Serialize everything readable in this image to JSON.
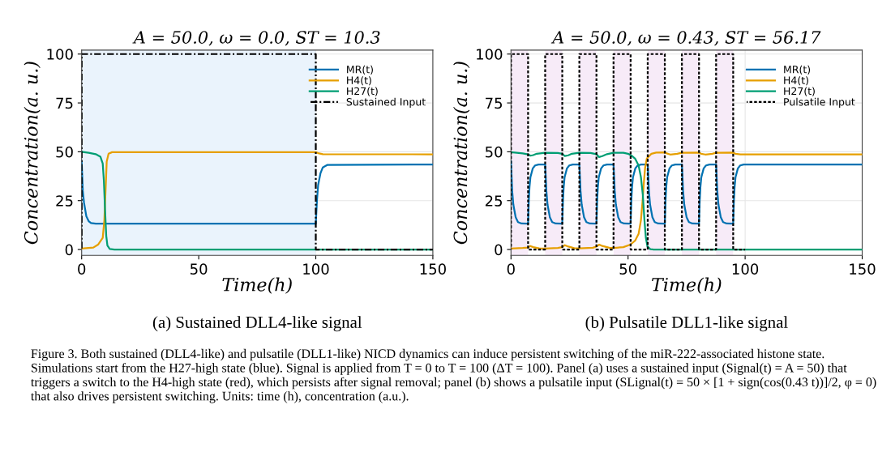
{
  "chart_data": [
    {
      "type": "line",
      "title": "A = 50.0, ω = 0.0, ST = 10.3",
      "xlabel": "Time(h)",
      "ylabel": "Concentration(a. u.)",
      "xlim": [
        0,
        150
      ],
      "xticks": [
        0,
        50,
        100,
        150
      ],
      "ylim": [
        -3,
        102
      ],
      "yticks": [
        0,
        25,
        50,
        75,
        100
      ],
      "grid": true,
      "legend": "top right",
      "bands": [
        {
          "axis": "x",
          "from": 0,
          "to": 100,
          "color": "#eaf3fc"
        }
      ],
      "annotations": [
        "(a) Sustained DLL4-like signal",
        "Figure 3. Both sustained (DLL4-like) and pulsatile (DLL1-like) NICD dynamics can induce persistent switching of the miR-222-associated histone state. Simulations start from the H27-high state (blue). Signal is applied from T = 0 to T = 100 (ΔT = 100). Panel (a) uses a sustained input (Signal(t) = A = 50) that triggers a switch to the H4-high state (red), which persists after signal removal; panel (b) shows a pulsatile input (SLignal(t) = 50 × [1 + sign(cos(0.43 t))]/2, φ = 0) that also drives persistent switching. Units: time (h), concentration (a.u.)."
      ],
      "series": [
        {
          "name": "Sustained Input",
          "type": "line",
          "color": "#000000",
          "line_style": "dashdot",
          "x": [
            0,
            0,
            100,
            100,
            150
          ],
          "values": [
            0,
            100,
            100,
            0,
            0
          ]
        },
        {
          "name": "MR(t)",
          "color": "#0072b2",
          "x": [
            0,
            0.5,
            1,
            2,
            3,
            4,
            6,
            100,
            100.5,
            101,
            102,
            103,
            105,
            150
          ],
          "values": [
            45,
            30,
            24,
            17,
            14.5,
            13.5,
            13.2,
            13.2,
            25,
            33,
            39,
            42,
            43.3,
            43.5
          ]
        },
        {
          "name": "H4(t)",
          "color": "#e69f00",
          "x": [
            0,
            5,
            7,
            9,
            9.7,
            10.2,
            10.7,
            11.5,
            13,
            100,
            101,
            103,
            150
          ],
          "values": [
            0.5,
            1,
            2.5,
            6,
            15,
            30,
            45,
            49,
            49.8,
            49.8,
            49.3,
            48.8,
            48.7
          ]
        },
        {
          "name": "H27(t)",
          "color": "#009e73",
          "x": [
            0,
            3,
            6,
            8,
            9,
            9.5,
            10,
            10.5,
            11,
            12,
            14,
            150
          ],
          "values": [
            50,
            49.5,
            48.8,
            47.5,
            44,
            35,
            20,
            7,
            2,
            0.3,
            0,
            0
          ]
        }
      ]
    },
    {
      "type": "line",
      "title": "A = 50.0, ω = 0.43, ST = 56.17",
      "xlabel": "Time(h)",
      "ylabel": "Concentration(a. u.)",
      "xlim": [
        0,
        150
      ],
      "xticks": [
        0,
        50,
        100,
        150
      ],
      "ylim": [
        -3,
        102
      ],
      "yticks": [
        0,
        25,
        50,
        75,
        100
      ],
      "grid": true,
      "legend": "top right",
      "bands": [
        {
          "axis": "x",
          "from": 0,
          "to": 7.3,
          "color": "#f7ebf8"
        },
        {
          "axis": "x",
          "from": 14.6,
          "to": 21.9,
          "color": "#f7ebf8"
        },
        {
          "axis": "x",
          "from": 29.2,
          "to": 36.5,
          "color": "#f7ebf8"
        },
        {
          "axis": "x",
          "from": 43.8,
          "to": 51.1,
          "color": "#f7ebf8"
        },
        {
          "axis": "x",
          "from": 58.4,
          "to": 65.7,
          "color": "#f7ebf8"
        },
        {
          "axis": "x",
          "from": 73.0,
          "to": 80.3,
          "color": "#f7ebf8"
        },
        {
          "axis": "x",
          "from": 87.6,
          "to": 94.9,
          "color": "#f7ebf8"
        }
      ],
      "annotations": [
        "(b) Pulsatile DLL1-like signal"
      ],
      "series": [
        {
          "name": "Pulsatile Input",
          "type": "line",
          "color": "#000000",
          "line_style": "dotted",
          "x": [
            0,
            0,
            7.3,
            7.3,
            14.6,
            14.6,
            21.9,
            21.9,
            29.2,
            29.2,
            36.5,
            36.5,
            43.8,
            43.8,
            51.1,
            51.1,
            58.4,
            58.4,
            65.7,
            65.7,
            73.0,
            73.0,
            80.3,
            80.3,
            87.6,
            87.6,
            94.9,
            94.9,
            100
          ],
          "values": [
            0,
            100,
            100,
            0,
            0,
            100,
            100,
            0,
            0,
            100,
            100,
            0,
            0,
            100,
            100,
            0,
            0,
            100,
            100,
            0,
            0,
            100,
            100,
            0,
            0,
            100,
            100,
            0,
            0
          ]
        },
        {
          "name": "MR(t)",
          "color": "#0072b2",
          "x": [
            0,
            0.5,
            1,
            2,
            3,
            4.5,
            7.3,
            7.6,
            7.9,
            8.3,
            9.3,
            10.3,
            11.8,
            14.6,
            15.1,
            15.6,
            16.6,
            17.6,
            19.1,
            21.9,
            22.2,
            22.5,
            22.9,
            23.9,
            24.9,
            26.4,
            29.2,
            29.7,
            30.2,
            31.2,
            32.2,
            33.7,
            36.5,
            36.8,
            37.1,
            37.5,
            38.5,
            39.5,
            41.0,
            43.8,
            44.3,
            44.8,
            45.8,
            46.8,
            48.3,
            51.1,
            51.4,
            51.7,
            52.1,
            53.1,
            54.1,
            55.6,
            58.4,
            58.9,
            59.4,
            60.4,
            61.4,
            62.9,
            65.7,
            66.0,
            66.3,
            66.7,
            67.7,
            68.7,
            70.2,
            73.0,
            73.5,
            74.0,
            75.0,
            76.0,
            77.5,
            80.3,
            80.6,
            80.9,
            81.3,
            82.3,
            83.3,
            84.8,
            87.6,
            88.1,
            88.6,
            89.6,
            90.6,
            92.1,
            94.9,
            95.2,
            95.5,
            95.9,
            96.9,
            97.9,
            99.4,
            150
          ],
          "values": [
            45,
            30,
            23,
            16.5,
            14,
            13.3,
            13.2,
            25,
            32,
            37,
            41.5,
            43,
            43.5,
            43.5,
            30,
            23,
            16.5,
            14,
            13.3,
            13.2,
            25,
            32,
            37,
            41.5,
            43,
            43.5,
            43.5,
            30,
            23,
            16.5,
            14,
            13.3,
            13.2,
            25,
            32,
            37,
            41.5,
            43,
            43.5,
            43.5,
            30,
            23,
            16.5,
            14,
            13.3,
            13.2,
            25,
            32,
            37,
            41.5,
            43,
            43.5,
            43.5,
            30,
            23,
            16.5,
            14,
            13.3,
            13.2,
            25,
            32,
            37,
            41.5,
            43,
            43.5,
            43.5,
            30,
            23,
            16.5,
            14,
            13.3,
            13.2,
            25,
            32,
            37,
            41.5,
            43,
            43.5,
            43.5,
            30,
            23,
            16.5,
            14,
            13.3,
            13.2,
            25,
            32,
            37,
            41.5,
            43,
            43.5,
            43.5
          ]
        },
        {
          "name": "H4(t)",
          "color": "#e69f00",
          "x": [
            0,
            5,
            7.3,
            8.2,
            9.5,
            12,
            14.6,
            20,
            21.9,
            23,
            24.5,
            27,
            29.2,
            35,
            36.5,
            37.7,
            39,
            42,
            43.8,
            48,
            51,
            53,
            54.5,
            55.5,
            56.2,
            56.8,
            57.3,
            58,
            60,
            62,
            65.7,
            66.5,
            68,
            71,
            73,
            80.3,
            81.2,
            83,
            86,
            87.6,
            94.9,
            95.8,
            98,
            150
          ],
          "values": [
            0.5,
            0.8,
            1,
            1.8,
            1.2,
            0.6,
            0.5,
            0.8,
            1.2,
            2.2,
            1.5,
            0.7,
            0.6,
            0.9,
            1.5,
            2.5,
            1.8,
            0.9,
            0.8,
            1.2,
            2.5,
            4.5,
            8,
            15,
            25,
            35,
            42,
            46.5,
            49,
            49.6,
            49.7,
            49.2,
            48.6,
            49,
            49.5,
            49.6,
            49,
            48.6,
            49,
            49.5,
            49.6,
            49,
            48.7,
            48.7
          ]
        },
        {
          "name": "H27(t)",
          "color": "#009e73",
          "x": [
            0,
            5,
            7.3,
            8.3,
            9.5,
            11,
            14.6,
            20,
            21.9,
            23,
            24.5,
            26,
            29.2,
            34,
            36.5,
            37.6,
            39,
            41,
            43.8,
            48,
            50,
            51.5,
            53,
            54.5,
            55.5,
            56.3,
            57,
            57.6,
            58.3,
            59.5,
            61,
            150
          ],
          "values": [
            49.8,
            49.2,
            48.7,
            48.0,
            48.3,
            49,
            49.5,
            49.4,
            49.0,
            47.8,
            48.2,
            49,
            49.5,
            49.4,
            48.8,
            47.3,
            47.8,
            48.8,
            49.5,
            49.5,
            49,
            48,
            46.5,
            43,
            37,
            28,
            15,
            6,
            1.5,
            0.2,
            0,
            0
          ]
        }
      ]
    }
  ]
}
